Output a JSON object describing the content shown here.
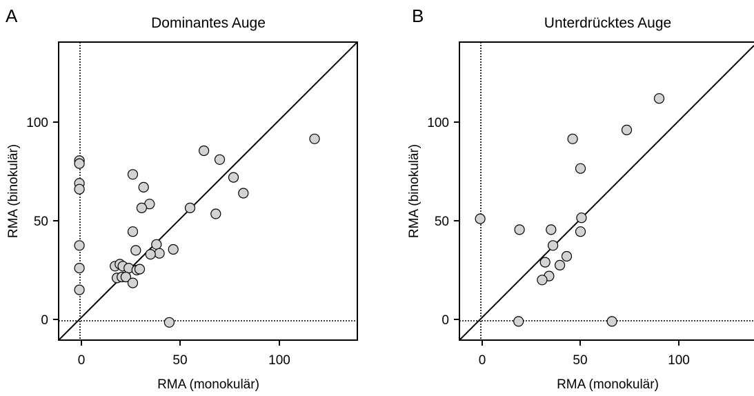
{
  "chart_data": [
    {
      "type": "scatter",
      "panel_label": "A",
      "title": "Dominantes Auge",
      "xlabel": "RMA (monokulär)",
      "ylabel": "RMA (binokulär)",
      "xlim": [
        -11,
        140
      ],
      "ylim": [
        -11,
        140
      ],
      "xticks": [
        0,
        50,
        100
      ],
      "yticks": [
        0,
        50,
        100
      ],
      "tick_labels_x": [
        "0",
        "50",
        "100"
      ],
      "tick_labels_y": [
        "0",
        "50",
        "100"
      ],
      "reference_lines": [
        "x = 0 (dotted)",
        "y = 0 (dotted)",
        "y = x (solid)"
      ],
      "grid": false,
      "marker_color": "#d3d3d3",
      "points": [
        {
          "x": -1,
          "y": 80.5
        },
        {
          "x": -1,
          "y": 79
        },
        {
          "x": -1,
          "y": 69
        },
        {
          "x": -1,
          "y": 66
        },
        {
          "x": -1,
          "y": 37.5
        },
        {
          "x": -1,
          "y": 26
        },
        {
          "x": -1,
          "y": 15
        },
        {
          "x": 44.5,
          "y": -1.5
        },
        {
          "x": 118,
          "y": 91.5
        },
        {
          "x": 62,
          "y": 85.5
        },
        {
          "x": 70,
          "y": 81
        },
        {
          "x": 82,
          "y": 64
        },
        {
          "x": 77,
          "y": 72
        },
        {
          "x": 68,
          "y": 53.5
        },
        {
          "x": 55,
          "y": 56.5
        },
        {
          "x": 26,
          "y": 73.5
        },
        {
          "x": 31.5,
          "y": 67
        },
        {
          "x": 34.5,
          "y": 58.5
        },
        {
          "x": 30.5,
          "y": 56.5
        },
        {
          "x": 26,
          "y": 44.5
        },
        {
          "x": 38,
          "y": 38
        },
        {
          "x": 46.5,
          "y": 35.5
        },
        {
          "x": 27.5,
          "y": 35
        },
        {
          "x": 39.5,
          "y": 33.5
        },
        {
          "x": 35,
          "y": 33
        },
        {
          "x": 17,
          "y": 27
        },
        {
          "x": 19.5,
          "y": 28
        },
        {
          "x": 21,
          "y": 27
        },
        {
          "x": 24,
          "y": 26
        },
        {
          "x": 28,
          "y": 25
        },
        {
          "x": 29.5,
          "y": 25.5
        },
        {
          "x": 18,
          "y": 21
        },
        {
          "x": 20.5,
          "y": 21.5
        },
        {
          "x": 22.5,
          "y": 21.5
        },
        {
          "x": 26,
          "y": 18.5
        }
      ]
    },
    {
      "type": "scatter",
      "panel_label": "B",
      "title": "Unterdrücktes Auge",
      "xlabel": "RMA (monokulär)",
      "ylabel": "RMA (binokulär)",
      "xlim": [
        -11,
        140
      ],
      "ylim": [
        -11,
        140
      ],
      "xticks": [
        0,
        50,
        100
      ],
      "yticks": [
        0,
        50,
        100
      ],
      "tick_labels_x": [
        "0",
        "50",
        "100"
      ],
      "tick_labels_y": [
        "0",
        "50",
        "100"
      ],
      "reference_lines": [
        "x = 0 (dotted)",
        "y = 0 (dotted)",
        "y = x (solid)"
      ],
      "grid": false,
      "marker_color": "#d3d3d3",
      "points": [
        {
          "x": -1,
          "y": 51
        },
        {
          "x": 18.5,
          "y": -1
        },
        {
          "x": 66,
          "y": -1
        },
        {
          "x": 90,
          "y": 112
        },
        {
          "x": 73.5,
          "y": 96
        },
        {
          "x": 46,
          "y": 91.5
        },
        {
          "x": 50,
          "y": 76.5
        },
        {
          "x": 19,
          "y": 45.5
        },
        {
          "x": 35,
          "y": 45.5
        },
        {
          "x": 50.5,
          "y": 51.5
        },
        {
          "x": 50,
          "y": 44.5
        },
        {
          "x": 36,
          "y": 37.5
        },
        {
          "x": 43,
          "y": 32
        },
        {
          "x": 39.5,
          "y": 27.5
        },
        {
          "x": 32,
          "y": 29
        },
        {
          "x": 34,
          "y": 22
        },
        {
          "x": 30.5,
          "y": 20
        }
      ]
    }
  ]
}
